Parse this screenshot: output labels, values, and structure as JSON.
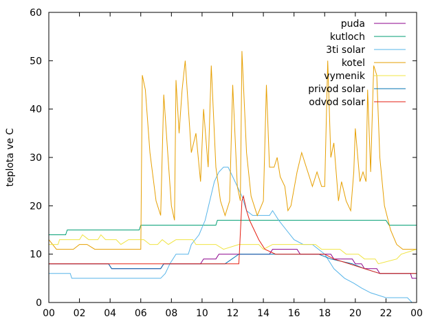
{
  "chart_data": {
    "type": "line",
    "title": "",
    "xlabel": "",
    "ylabel": "teplota ve C",
    "xlim": [
      0,
      24
    ],
    "ylim": [
      0,
      60
    ],
    "x_ticks": [
      "00",
      "02",
      "04",
      "06",
      "08",
      "10",
      "12",
      "14",
      "16",
      "18",
      "20",
      "22",
      "00"
    ],
    "y_ticks": [
      "0",
      "10",
      "20",
      "30",
      "40",
      "50",
      "60"
    ],
    "grid": false,
    "legend_position": "top-right",
    "series": [
      {
        "name": "puda",
        "color": "#8b008b",
        "points": [
          [
            0,
            8
          ],
          [
            3.9,
            8
          ],
          [
            4.1,
            7
          ],
          [
            7.3,
            7
          ],
          [
            7.5,
            8
          ],
          [
            9.9,
            8
          ],
          [
            10.1,
            9
          ],
          [
            10.9,
            9
          ],
          [
            11.1,
            10
          ],
          [
            14.4,
            10
          ],
          [
            14.6,
            11
          ],
          [
            16.2,
            11
          ],
          [
            16.4,
            10
          ],
          [
            18.4,
            10
          ],
          [
            18.6,
            9
          ],
          [
            19.8,
            9
          ],
          [
            20,
            8
          ],
          [
            20.4,
            8
          ],
          [
            20.6,
            7
          ],
          [
            21.4,
            7
          ],
          [
            21.6,
            6
          ],
          [
            23.6,
            6
          ],
          [
            23.7,
            5
          ],
          [
            24,
            5
          ]
        ]
      },
      {
        "name": "kutloch",
        "color": "#009e73",
        "points": [
          [
            0,
            14
          ],
          [
            1.1,
            14
          ],
          [
            1.2,
            15
          ],
          [
            5.9,
            15
          ],
          [
            6,
            16
          ],
          [
            10.9,
            16
          ],
          [
            11,
            17
          ],
          [
            22,
            17
          ],
          [
            22.2,
            16
          ],
          [
            24,
            16
          ]
        ]
      },
      {
        "name": "3ti solar",
        "color": "#56b4e9",
        "points": [
          [
            0,
            6
          ],
          [
            1.4,
            6
          ],
          [
            1.5,
            5
          ],
          [
            7.3,
            5
          ],
          [
            7.6,
            6
          ],
          [
            7.9,
            8
          ],
          [
            8.3,
            10
          ],
          [
            9.1,
            10
          ],
          [
            9.3,
            12
          ],
          [
            9.8,
            14
          ],
          [
            10.2,
            17
          ],
          [
            10.5,
            21
          ],
          [
            10.8,
            25
          ],
          [
            11.1,
            27
          ],
          [
            11.4,
            28
          ],
          [
            11.7,
            28
          ],
          [
            12,
            26
          ],
          [
            12.3,
            24
          ],
          [
            12.6,
            22
          ],
          [
            12.9,
            19
          ],
          [
            13.3,
            18
          ],
          [
            14.4,
            18
          ],
          [
            14.6,
            19
          ],
          [
            15,
            17
          ],
          [
            15.5,
            15
          ],
          [
            16,
            13
          ],
          [
            16.6,
            12
          ],
          [
            17.2,
            12
          ],
          [
            17.6,
            11
          ],
          [
            18,
            10
          ],
          [
            18.6,
            7
          ],
          [
            19.3,
            5
          ],
          [
            19.9,
            4
          ],
          [
            20.4,
            3
          ],
          [
            21,
            2
          ],
          [
            22,
            1
          ],
          [
            23.4,
            1
          ],
          [
            23.7,
            0
          ],
          [
            24,
            0
          ]
        ]
      },
      {
        "name": "kotel",
        "color": "#e69f00",
        "points": [
          [
            0,
            13
          ],
          [
            0.5,
            11
          ],
          [
            1,
            11
          ],
          [
            1.6,
            11
          ],
          [
            2,
            12
          ],
          [
            2.5,
            12
          ],
          [
            3,
            11
          ],
          [
            4,
            11
          ],
          [
            5.5,
            11
          ],
          [
            6,
            11
          ],
          [
            6.1,
            47
          ],
          [
            6.3,
            44
          ],
          [
            6.6,
            31
          ],
          [
            7,
            21
          ],
          [
            7.3,
            18
          ],
          [
            7.5,
            43
          ],
          [
            7.8,
            29
          ],
          [
            8,
            20
          ],
          [
            8.2,
            17
          ],
          [
            8.3,
            46
          ],
          [
            8.5,
            35
          ],
          [
            8.7,
            44
          ],
          [
            8.9,
            50
          ],
          [
            9.3,
            31
          ],
          [
            9.6,
            35
          ],
          [
            9.9,
            25
          ],
          [
            10.1,
            40
          ],
          [
            10.4,
            28
          ],
          [
            10.6,
            49
          ],
          [
            10.9,
            28
          ],
          [
            11.2,
            21
          ],
          [
            11.5,
            18
          ],
          [
            11.8,
            21
          ],
          [
            12,
            45
          ],
          [
            12.3,
            24
          ],
          [
            12.5,
            21
          ],
          [
            12.6,
            52
          ],
          [
            12.9,
            31
          ],
          [
            13.2,
            22
          ],
          [
            13.6,
            18
          ],
          [
            14,
            21
          ],
          [
            14.2,
            45
          ],
          [
            14.4,
            28
          ],
          [
            14.7,
            28
          ],
          [
            14.9,
            30
          ],
          [
            15.1,
            26
          ],
          [
            15.4,
            24
          ],
          [
            15.6,
            19
          ],
          [
            15.8,
            20
          ],
          [
            16.2,
            27
          ],
          [
            16.5,
            31
          ],
          [
            16.8,
            28
          ],
          [
            17,
            26
          ],
          [
            17.2,
            24
          ],
          [
            17.5,
            27
          ],
          [
            17.8,
            24
          ],
          [
            18,
            24
          ],
          [
            18.2,
            50
          ],
          [
            18.4,
            30
          ],
          [
            18.6,
            33
          ],
          [
            18.9,
            21
          ],
          [
            19.1,
            25
          ],
          [
            19.4,
            21
          ],
          [
            19.7,
            19
          ],
          [
            19.9,
            27
          ],
          [
            20,
            36
          ],
          [
            20.3,
            25
          ],
          [
            20.5,
            27
          ],
          [
            20.7,
            25
          ],
          [
            20.8,
            44
          ],
          [
            21,
            27
          ],
          [
            21.2,
            49
          ],
          [
            21.4,
            47
          ],
          [
            21.6,
            30
          ],
          [
            21.9,
            20
          ],
          [
            22.3,
            15
          ],
          [
            22.7,
            12
          ],
          [
            23.1,
            11
          ],
          [
            23.5,
            11
          ],
          [
            24,
            11
          ]
        ]
      },
      {
        "name": "vymenik",
        "color": "#f0e442",
        "points": [
          [
            0,
            12
          ],
          [
            0.6,
            12
          ],
          [
            0.7,
            13
          ],
          [
            2,
            13
          ],
          [
            2.2,
            14
          ],
          [
            2.6,
            13
          ],
          [
            3.2,
            13
          ],
          [
            3.4,
            14
          ],
          [
            3.7,
            13
          ],
          [
            4.4,
            13
          ],
          [
            4.7,
            12
          ],
          [
            5.2,
            13
          ],
          [
            6.2,
            13
          ],
          [
            6.6,
            12
          ],
          [
            7.1,
            12
          ],
          [
            7.4,
            13
          ],
          [
            7.8,
            12
          ],
          [
            8.3,
            13
          ],
          [
            9.4,
            13
          ],
          [
            9.6,
            12
          ],
          [
            10.9,
            12
          ],
          [
            11.4,
            11
          ],
          [
            12.4,
            12
          ],
          [
            13.7,
            12
          ],
          [
            14,
            11
          ],
          [
            14.6,
            12
          ],
          [
            17.4,
            12
          ],
          [
            17.8,
            11
          ],
          [
            19,
            11
          ],
          [
            19.4,
            10
          ],
          [
            20.2,
            10
          ],
          [
            20.6,
            9
          ],
          [
            21.3,
            9
          ],
          [
            21.5,
            8
          ],
          [
            22.7,
            9
          ],
          [
            23,
            10
          ],
          [
            24,
            11
          ]
        ]
      },
      {
        "name": "privod solar",
        "color": "#0072b2",
        "points": [
          [
            0,
            8
          ],
          [
            3.9,
            8
          ],
          [
            4.1,
            7
          ],
          [
            7.3,
            7
          ],
          [
            7.5,
            8
          ],
          [
            11.5,
            8
          ],
          [
            12.4,
            10
          ],
          [
            15.6,
            10
          ],
          [
            17.6,
            10
          ],
          [
            18.4,
            9
          ],
          [
            19.8,
            8
          ],
          [
            20.6,
            7
          ],
          [
            21.6,
            6
          ],
          [
            24,
            6
          ]
        ]
      },
      {
        "name": "odvod solar",
        "color": "#e51e10",
        "points": [
          [
            0,
            8
          ],
          [
            12.4,
            8
          ],
          [
            12.6,
            21
          ],
          [
            12.7,
            22
          ],
          [
            12.9,
            19
          ],
          [
            13.1,
            17
          ],
          [
            13.4,
            15
          ],
          [
            13.7,
            13
          ],
          [
            14.1,
            11
          ],
          [
            14.8,
            10
          ],
          [
            17.6,
            10
          ],
          [
            18,
            10
          ],
          [
            18.6,
            9
          ],
          [
            19.6,
            8
          ],
          [
            20.6,
            7
          ],
          [
            21.6,
            6
          ],
          [
            24,
            6
          ]
        ]
      }
    ]
  }
}
